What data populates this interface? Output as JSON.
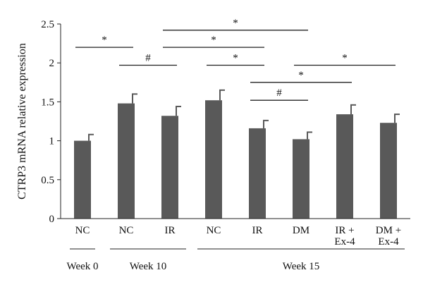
{
  "chart_data": {
    "type": "bar",
    "ylabel": "CTRP3 mRNA relative expression",
    "ylim": [
      0,
      2.5
    ],
    "yticks": [
      "0",
      "0.5",
      "1",
      "1.5",
      "2",
      "2.5"
    ],
    "bar_color": "#595959",
    "bars": [
      {
        "label": [
          "NC"
        ],
        "value": 1.0,
        "error": 0.08
      },
      {
        "label": [
          "NC"
        ],
        "value": 1.48,
        "error": 0.12
      },
      {
        "label": [
          "IR"
        ],
        "value": 1.32,
        "error": 0.12
      },
      {
        "label": [
          "NC"
        ],
        "value": 1.52,
        "error": 0.13
      },
      {
        "label": [
          "IR"
        ],
        "value": 1.16,
        "error": 0.1
      },
      {
        "label": [
          "DM"
        ],
        "value": 1.02,
        "error": 0.09
      },
      {
        "label": [
          "IR +",
          "Ex-4"
        ],
        "value": 1.34,
        "error": 0.12
      },
      {
        "label": [
          "DM +",
          "Ex-4"
        ],
        "value": 1.23,
        "error": 0.11
      }
    ],
    "groups": [
      {
        "label": "Week 0",
        "from": 0,
        "to": 0
      },
      {
        "label": "Week 10",
        "from": 1,
        "to": 2
      },
      {
        "label": "Week 15",
        "from": 3,
        "to": 7
      }
    ],
    "significance": [
      {
        "from": 0,
        "to": 1,
        "y": 2.2,
        "symbol": "*"
      },
      {
        "from": 1,
        "to": 2,
        "y": 1.97,
        "symbol": "#"
      },
      {
        "from": 2,
        "to": 5,
        "y": 2.42,
        "symbol": "*"
      },
      {
        "from": 2,
        "to": 4,
        "y": 2.2,
        "symbol": "*"
      },
      {
        "from": 3,
        "to": 4,
        "y": 1.97,
        "symbol": "*"
      },
      {
        "from": 4,
        "to": 6,
        "y": 1.75,
        "symbol": "*"
      },
      {
        "from": 4,
        "to": 5,
        "y": 1.52,
        "symbol": "#"
      },
      {
        "from": 5,
        "to": 7,
        "y": 1.97,
        "symbol": "*"
      }
    ]
  }
}
